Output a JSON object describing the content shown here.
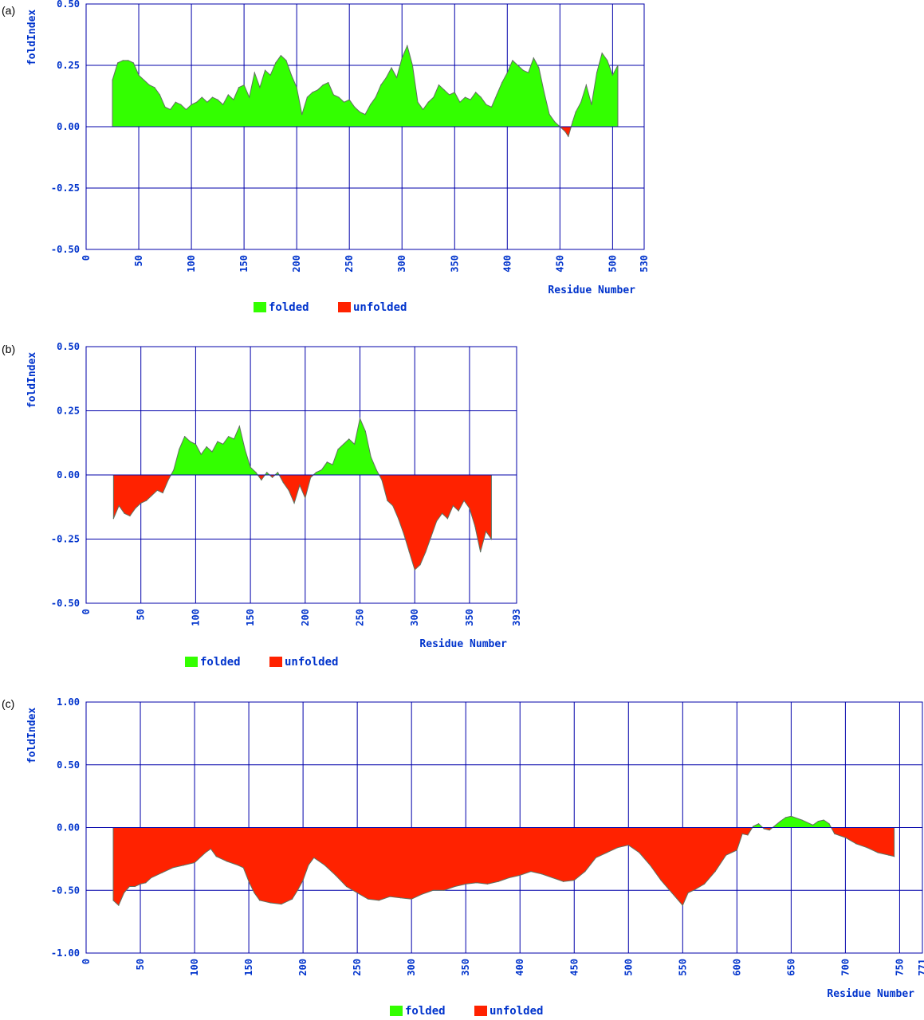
{
  "colors": {
    "folded": "#33ff00",
    "unfolded": "#ff2200",
    "grid": "#0000aa",
    "text": "#0033cc",
    "outline": "#607060"
  },
  "legend": {
    "folded": "folded",
    "unfolded": "unfolded"
  },
  "chart_data": [
    {
      "type": "area",
      "panel": "(a)",
      "ylabel": "foldIndex",
      "xlabel": "Residue Number",
      "xlim": [
        0,
        530
      ],
      "ylim": [
        -0.5,
        0.5
      ],
      "xticks": [
        "0",
        "50",
        "100",
        "150",
        "200",
        "250",
        "300",
        "350",
        "400",
        "450",
        "500",
        "530"
      ],
      "yticks": [
        "0.50",
        "0.25",
        "0.00",
        "-0.25",
        "-0.50"
      ],
      "x_start": 25,
      "x_end": 505,
      "points": [
        [
          25,
          0.19
        ],
        [
          30,
          0.26
        ],
        [
          35,
          0.27
        ],
        [
          40,
          0.27
        ],
        [
          45,
          0.26
        ],
        [
          50,
          0.21
        ],
        [
          55,
          0.19
        ],
        [
          60,
          0.17
        ],
        [
          65,
          0.16
        ],
        [
          70,
          0.13
        ],
        [
          75,
          0.08
        ],
        [
          80,
          0.07
        ],
        [
          85,
          0.1
        ],
        [
          90,
          0.09
        ],
        [
          95,
          0.07
        ],
        [
          100,
          0.09
        ],
        [
          105,
          0.1
        ],
        [
          110,
          0.12
        ],
        [
          115,
          0.1
        ],
        [
          120,
          0.12
        ],
        [
          125,
          0.11
        ],
        [
          130,
          0.09
        ],
        [
          135,
          0.13
        ],
        [
          140,
          0.11
        ],
        [
          145,
          0.16
        ],
        [
          150,
          0.17
        ],
        [
          155,
          0.12
        ],
        [
          160,
          0.22
        ],
        [
          165,
          0.16
        ],
        [
          170,
          0.23
        ],
        [
          175,
          0.21
        ],
        [
          180,
          0.26
        ],
        [
          185,
          0.29
        ],
        [
          190,
          0.27
        ],
        [
          195,
          0.21
        ],
        [
          200,
          0.16
        ],
        [
          205,
          0.05
        ],
        [
          210,
          0.12
        ],
        [
          215,
          0.14
        ],
        [
          220,
          0.15
        ],
        [
          225,
          0.17
        ],
        [
          230,
          0.18
        ],
        [
          235,
          0.13
        ],
        [
          240,
          0.12
        ],
        [
          245,
          0.1
        ],
        [
          250,
          0.11
        ],
        [
          255,
          0.08
        ],
        [
          260,
          0.06
        ],
        [
          265,
          0.05
        ],
        [
          270,
          0.09
        ],
        [
          275,
          0.12
        ],
        [
          280,
          0.17
        ],
        [
          285,
          0.2
        ],
        [
          290,
          0.24
        ],
        [
          295,
          0.2
        ],
        [
          300,
          0.28
        ],
        [
          305,
          0.33
        ],
        [
          310,
          0.25
        ],
        [
          315,
          0.1
        ],
        [
          320,
          0.07
        ],
        [
          325,
          0.1
        ],
        [
          330,
          0.12
        ],
        [
          335,
          0.17
        ],
        [
          340,
          0.15
        ],
        [
          345,
          0.13
        ],
        [
          350,
          0.14
        ],
        [
          355,
          0.1
        ],
        [
          360,
          0.12
        ],
        [
          365,
          0.11
        ],
        [
          370,
          0.14
        ],
        [
          375,
          0.12
        ],
        [
          380,
          0.09
        ],
        [
          385,
          0.08
        ],
        [
          390,
          0.13
        ],
        [
          395,
          0.18
        ],
        [
          400,
          0.22
        ],
        [
          405,
          0.27
        ],
        [
          410,
          0.25
        ],
        [
          415,
          0.23
        ],
        [
          420,
          0.22
        ],
        [
          425,
          0.28
        ],
        [
          430,
          0.24
        ],
        [
          435,
          0.14
        ],
        [
          440,
          0.05
        ],
        [
          445,
          0.02
        ],
        [
          450,
          0.0
        ],
        [
          455,
          -0.02
        ],
        [
          458,
          -0.04
        ],
        [
          462,
          0.02
        ],
        [
          465,
          0.06
        ],
        [
          470,
          0.1
        ],
        [
          475,
          0.17
        ],
        [
          480,
          0.09
        ],
        [
          485,
          0.22
        ],
        [
          490,
          0.3
        ],
        [
          495,
          0.27
        ],
        [
          500,
          0.21
        ],
        [
          505,
          0.25
        ]
      ]
    },
    {
      "type": "area",
      "panel": "(b)",
      "ylabel": "foldIndex",
      "xlabel": "Residue Number",
      "xlim": [
        0,
        393
      ],
      "ylim": [
        -0.5,
        0.5
      ],
      "xticks": [
        "0",
        "50",
        "100",
        "150",
        "200",
        "250",
        "300",
        "350",
        "393"
      ],
      "yticks": [
        "0.50",
        "0.25",
        "0.00",
        "-0.25",
        "-0.50"
      ],
      "x_start": 25,
      "x_end": 370,
      "points": [
        [
          25,
          -0.17
        ],
        [
          30,
          -0.12
        ],
        [
          35,
          -0.15
        ],
        [
          40,
          -0.16
        ],
        [
          45,
          -0.13
        ],
        [
          50,
          -0.11
        ],
        [
          55,
          -0.1
        ],
        [
          60,
          -0.08
        ],
        [
          65,
          -0.06
        ],
        [
          70,
          -0.07
        ],
        [
          75,
          -0.02
        ],
        [
          80,
          0.02
        ],
        [
          85,
          0.1
        ],
        [
          90,
          0.15
        ],
        [
          95,
          0.13
        ],
        [
          100,
          0.12
        ],
        [
          105,
          0.08
        ],
        [
          110,
          0.11
        ],
        [
          115,
          0.09
        ],
        [
          120,
          0.13
        ],
        [
          125,
          0.12
        ],
        [
          130,
          0.15
        ],
        [
          135,
          0.14
        ],
        [
          140,
          0.19
        ],
        [
          145,
          0.1
        ],
        [
          150,
          0.03
        ],
        [
          155,
          0.01
        ],
        [
          160,
          -0.02
        ],
        [
          165,
          0.01
        ],
        [
          170,
          -0.01
        ],
        [
          175,
          0.01
        ],
        [
          180,
          -0.03
        ],
        [
          185,
          -0.06
        ],
        [
          190,
          -0.11
        ],
        [
          195,
          -0.04
        ],
        [
          200,
          -0.09
        ],
        [
          205,
          -0.01
        ],
        [
          210,
          0.01
        ],
        [
          215,
          0.02
        ],
        [
          220,
          0.05
        ],
        [
          225,
          0.04
        ],
        [
          230,
          0.1
        ],
        [
          235,
          0.12
        ],
        [
          240,
          0.14
        ],
        [
          245,
          0.12
        ],
        [
          250,
          0.22
        ],
        [
          255,
          0.17
        ],
        [
          260,
          0.07
        ],
        [
          265,
          0.02
        ],
        [
          270,
          -0.02
        ],
        [
          275,
          -0.1
        ],
        [
          280,
          -0.12
        ],
        [
          285,
          -0.17
        ],
        [
          290,
          -0.23
        ],
        [
          295,
          -0.3
        ],
        [
          300,
          -0.37
        ],
        [
          305,
          -0.35
        ],
        [
          310,
          -0.3
        ],
        [
          315,
          -0.24
        ],
        [
          320,
          -0.18
        ],
        [
          325,
          -0.15
        ],
        [
          330,
          -0.17
        ],
        [
          335,
          -0.12
        ],
        [
          340,
          -0.14
        ],
        [
          345,
          -0.1
        ],
        [
          350,
          -0.13
        ],
        [
          355,
          -0.2
        ],
        [
          360,
          -0.3
        ],
        [
          365,
          -0.22
        ],
        [
          370,
          -0.25
        ]
      ]
    },
    {
      "type": "area",
      "panel": "(c)",
      "ylabel": "foldIndex",
      "xlabel": "Residue Number",
      "xlim": [
        0,
        771
      ],
      "ylim": [
        -1.0,
        1.0
      ],
      "xticks": [
        "0",
        "50",
        "100",
        "150",
        "200",
        "250",
        "300",
        "350",
        "400",
        "450",
        "500",
        "550",
        "600",
        "650",
        "700",
        "750",
        "771"
      ],
      "yticks": [
        "1.00",
        "0.50",
        "0.00",
        "-0.50",
        "-1.00"
      ],
      "x_start": 25,
      "x_end": 745,
      "points": [
        [
          25,
          -0.58
        ],
        [
          30,
          -0.62
        ],
        [
          35,
          -0.52
        ],
        [
          40,
          -0.47
        ],
        [
          45,
          -0.47
        ],
        [
          50,
          -0.45
        ],
        [
          55,
          -0.44
        ],
        [
          60,
          -0.4
        ],
        [
          70,
          -0.36
        ],
        [
          80,
          -0.32
        ],
        [
          90,
          -0.3
        ],
        [
          100,
          -0.28
        ],
        [
          110,
          -0.2
        ],
        [
          115,
          -0.17
        ],
        [
          120,
          -0.23
        ],
        [
          130,
          -0.27
        ],
        [
          140,
          -0.3
        ],
        [
          145,
          -0.32
        ],
        [
          150,
          -0.43
        ],
        [
          155,
          -0.52
        ],
        [
          160,
          -0.58
        ],
        [
          170,
          -0.6
        ],
        [
          180,
          -0.61
        ],
        [
          190,
          -0.57
        ],
        [
          195,
          -0.5
        ],
        [
          200,
          -0.42
        ],
        [
          205,
          -0.3
        ],
        [
          210,
          -0.24
        ],
        [
          220,
          -0.3
        ],
        [
          230,
          -0.38
        ],
        [
          240,
          -0.47
        ],
        [
          250,
          -0.52
        ],
        [
          260,
          -0.57
        ],
        [
          270,
          -0.58
        ],
        [
          280,
          -0.55
        ],
        [
          290,
          -0.56
        ],
        [
          300,
          -0.57
        ],
        [
          310,
          -0.53
        ],
        [
          320,
          -0.5
        ],
        [
          330,
          -0.5
        ],
        [
          340,
          -0.47
        ],
        [
          350,
          -0.45
        ],
        [
          360,
          -0.44
        ],
        [
          370,
          -0.45
        ],
        [
          380,
          -0.43
        ],
        [
          390,
          -0.4
        ],
        [
          400,
          -0.38
        ],
        [
          410,
          -0.35
        ],
        [
          420,
          -0.37
        ],
        [
          430,
          -0.4
        ],
        [
          440,
          -0.43
        ],
        [
          450,
          -0.42
        ],
        [
          460,
          -0.35
        ],
        [
          470,
          -0.24
        ],
        [
          480,
          -0.2
        ],
        [
          490,
          -0.16
        ],
        [
          500,
          -0.14
        ],
        [
          510,
          -0.2
        ],
        [
          520,
          -0.3
        ],
        [
          530,
          -0.42
        ],
        [
          540,
          -0.52
        ],
        [
          550,
          -0.62
        ],
        [
          555,
          -0.52
        ],
        [
          560,
          -0.5
        ],
        [
          570,
          -0.45
        ],
        [
          580,
          -0.35
        ],
        [
          590,
          -0.22
        ],
        [
          600,
          -0.18
        ],
        [
          605,
          -0.05
        ],
        [
          610,
          -0.06
        ],
        [
          615,
          0.01
        ],
        [
          620,
          0.03
        ],
        [
          625,
          -0.01
        ],
        [
          630,
          -0.02
        ],
        [
          640,
          0.05
        ],
        [
          645,
          0.08
        ],
        [
          650,
          0.09
        ],
        [
          660,
          0.06
        ],
        [
          670,
          0.02
        ],
        [
          675,
          0.05
        ],
        [
          680,
          0.06
        ],
        [
          685,
          0.03
        ],
        [
          690,
          -0.05
        ],
        [
          700,
          -0.08
        ],
        [
          710,
          -0.13
        ],
        [
          720,
          -0.16
        ],
        [
          730,
          -0.2
        ],
        [
          740,
          -0.22
        ],
        [
          745,
          -0.23
        ]
      ]
    }
  ]
}
